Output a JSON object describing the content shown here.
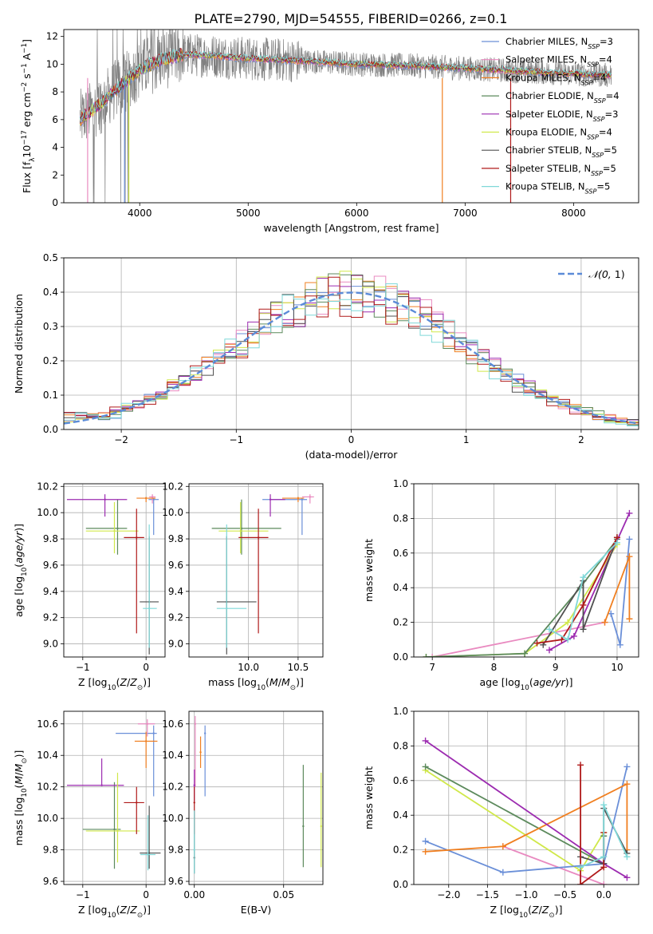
{
  "figure_title": "PLATE=2790, MJD=54555, FIBERID=0266, z=0.1",
  "colors": {
    "chabrier_miles": "#6a8fd8",
    "salpeter_miles": "#e98ac0",
    "kroupa_miles": "#f07f20",
    "chabrier_elodie": "#5c8a5c",
    "salpeter_elodie": "#9c2bb0",
    "kroupa_elodie": "#d0e84a",
    "chabrier_stelib": "#505050",
    "salpeter_stelib": "#b01a1a",
    "kroupa_stelib": "#7fd8d8",
    "normal": "#5b8bd8",
    "spectrum": "#808080"
  },
  "chart_data": [
    {
      "id": "spectrum",
      "type": "line",
      "title": "PLATE=2790, MJD=54555, FIBERID=0266, z=0.1",
      "xlabel": "wavelength [Angstrom, rest frame]",
      "ylabel": "Flux [f_λ 10^-17 erg cm^-2 s^-1 A^-1]",
      "xlim": [
        3300,
        8600
      ],
      "ylim": [
        0,
        12.5
      ],
      "xticks": [
        4000,
        5000,
        6000,
        7000,
        8000
      ],
      "yticks": [
        0,
        2,
        4,
        6,
        8,
        10,
        12
      ],
      "grid": false,
      "legend_position": "right",
      "legend": [
        "Chabrier MILES, N_SSP=3",
        "Salpeter MILES, N_SSP=4",
        "Kroupa MILES, N_SSP=4",
        "Chabrier ELODIE, N_SSP=4",
        "Salpeter ELODIE, N_SSP=3",
        "Kroupa ELODIE, N_SSP=4",
        "Chabrier STELIB, N_SSP=5",
        "Salpeter STELIB, N_SSP=5",
        "Kroupa STELIB, N_SSP=5"
      ],
      "data_range_x": [
        3450,
        8350
      ],
      "model_profile": [
        [
          3450,
          6.0
        ],
        [
          3550,
          6.6
        ],
        [
          3650,
          7.2
        ],
        [
          3750,
          8.0
        ],
        [
          3850,
          8.6
        ],
        [
          3950,
          9.3
        ],
        [
          4050,
          9.8
        ],
        [
          4200,
          10.3
        ],
        [
          4400,
          10.7
        ],
        [
          4700,
          10.6
        ],
        [
          5000,
          10.4
        ],
        [
          5300,
          10.3
        ],
        [
          5600,
          10.2
        ],
        [
          6000,
          10.0
        ],
        [
          6500,
          9.9
        ],
        [
          7000,
          9.7
        ],
        [
          7500,
          9.5
        ],
        [
          8000,
          9.3
        ],
        [
          8350,
          9.2
        ]
      ]
    },
    {
      "id": "residuals",
      "type": "histogram",
      "xlabel": "(data-model)/error",
      "ylabel": "Normed distribution",
      "xlim": [
        -2.5,
        2.5
      ],
      "ylim": [
        0,
        0.5
      ],
      "xticks": [
        -2,
        -1,
        0,
        1,
        2
      ],
      "yticks": [
        0.0,
        0.1,
        0.2,
        0.3,
        0.4,
        0.5
      ],
      "grid": true,
      "legend": [
        "𝒩(0, 1)"
      ],
      "legend_position": "top-right",
      "bin_width": 0.1
    },
    {
      "id": "age_vs_Z",
      "type": "scatter",
      "xlabel": "Z [log10(Z/Z⊙)]",
      "ylabel": "age [log10(age/yr)]",
      "xlim": [
        -1.3,
        0.3
      ],
      "ylim": [
        8.9,
        10.22
      ],
      "xticks": [
        -1,
        0
      ],
      "yticks": [
        9.0,
        9.2,
        9.4,
        9.6,
        9.8,
        10.0,
        10.2
      ],
      "grid": true,
      "points": [
        {
          "model": "chabrier_miles",
          "x": 0.12,
          "y": 10.1,
          "xerr": [
            0.08,
            0.08
          ],
          "yerr": [
            0.27,
            0.01
          ]
        },
        {
          "model": "salpeter_miles",
          "x": 0.1,
          "y": 10.12,
          "xerr": [
            0.05,
            0.05
          ],
          "yerr": [
            0.05,
            0.02
          ]
        },
        {
          "model": "kroupa_miles",
          "x": 0.0,
          "y": 10.11,
          "xerr": [
            0.15,
            0.15
          ],
          "yerr": [
            0.03,
            0.01
          ]
        },
        {
          "model": "chabrier_elodie",
          "x": -0.45,
          "y": 9.88,
          "xerr": [
            0.5,
            0.15
          ],
          "yerr": [
            0.2,
            0.22
          ]
        },
        {
          "model": "salpeter_elodie",
          "x": -0.65,
          "y": 10.1,
          "xerr": [
            0.6,
            0.35
          ],
          "yerr": [
            0.13,
            0.04
          ]
        },
        {
          "model": "kroupa_elodie",
          "x": -0.5,
          "y": 9.86,
          "xerr": [
            0.45,
            0.38
          ],
          "yerr": [
            0.17,
            0.22
          ]
        },
        {
          "model": "chabrier_stelib",
          "x": 0.05,
          "y": 9.32,
          "xerr": [
            0.15,
            0.15
          ],
          "yerr": [
            0.4,
            0.5
          ]
        },
        {
          "model": "salpeter_stelib",
          "x": -0.15,
          "y": 9.81,
          "xerr": [
            0.2,
            0.12
          ],
          "yerr": [
            0.73,
            0.22
          ]
        },
        {
          "model": "kroupa_stelib",
          "x": 0.05,
          "y": 9.27,
          "xerr": [
            0.1,
            0.12
          ],
          "yerr": [
            0.3,
            0.64
          ]
        }
      ]
    },
    {
      "id": "age_vs_mass",
      "type": "scatter",
      "xlabel": "mass [log10(M/M⊙)]",
      "ylabel": "",
      "xlim": [
        9.4,
        10.75
      ],
      "ylim": [
        8.9,
        10.22
      ],
      "xticks": [
        10.0,
        10.5
      ],
      "yticks": [
        9.0,
        9.2,
        9.4,
        9.6,
        9.8,
        10.0,
        10.2
      ],
      "grid": true,
      "points": [
        {
          "model": "chabrier_miles",
          "x": 10.54,
          "y": 10.1,
          "xerr": [
            0.4,
            0.05
          ],
          "yerr": [
            0.27,
            0.01
          ]
        },
        {
          "model": "salpeter_miles",
          "x": 10.62,
          "y": 10.12,
          "xerr": [
            0.08,
            0.04
          ],
          "yerr": [
            0.05,
            0.02
          ]
        },
        {
          "model": "kroupa_miles",
          "x": 10.5,
          "y": 10.11,
          "xerr": [
            0.16,
            0.06
          ],
          "yerr": [
            0.03,
            0.01
          ]
        },
        {
          "model": "chabrier_elodie",
          "x": 9.93,
          "y": 9.88,
          "xerr": [
            0.3,
            0.4
          ],
          "yerr": [
            0.2,
            0.22
          ]
        },
        {
          "model": "salpeter_elodie",
          "x": 10.22,
          "y": 10.1,
          "xerr": [
            0.0,
            0.15
          ],
          "yerr": [
            0.13,
            0.04
          ]
        },
        {
          "model": "kroupa_elodie",
          "x": 9.92,
          "y": 9.86,
          "xerr": [
            0.22,
            0.28
          ],
          "yerr": [
            0.17,
            0.22
          ]
        },
        {
          "model": "chabrier_stelib",
          "x": 9.78,
          "y": 9.32,
          "xerr": [
            0.1,
            0.3
          ],
          "yerr": [
            0.4,
            0.5
          ]
        },
        {
          "model": "salpeter_stelib",
          "x": 10.1,
          "y": 9.81,
          "xerr": [
            0.2,
            0.1
          ],
          "yerr": [
            0.73,
            0.22
          ]
        },
        {
          "model": "kroupa_stelib",
          "x": 9.78,
          "y": 9.27,
          "xerr": [
            0.1,
            0.2
          ],
          "yerr": [
            0.3,
            0.64
          ]
        }
      ]
    },
    {
      "id": "weight_vs_age",
      "type": "line",
      "xlabel": "age [log10(age/yr)]",
      "ylabel": "mass weight",
      "xlim": [
        6.7,
        10.35
      ],
      "ylim": [
        0,
        1.0
      ],
      "xticks": [
        7,
        8,
        9,
        10
      ],
      "yticks": [
        0.0,
        0.2,
        0.4,
        0.6,
        0.8,
        1.0
      ],
      "grid": true,
      "series": [
        {
          "model": "salpeter_miles",
          "x": [
            7.0,
            9.8
          ],
          "y": [
            0.0,
            0.2
          ]
        },
        {
          "model": "kroupa_elodie",
          "x": [
            6.9,
            8.5,
            9.2,
            10.0
          ],
          "y": [
            0.0,
            0.02,
            0.2,
            0.65
          ]
        },
        {
          "model": "chabrier_elodie",
          "x": [
            6.9,
            8.5,
            9.4,
            10.0
          ],
          "y": [
            0.0,
            0.02,
            0.4,
            0.68
          ]
        },
        {
          "model": "chabrier_miles",
          "x": [
            9.9,
            10.05,
            10.2
          ],
          "y": [
            0.25,
            0.07,
            0.68
          ]
        },
        {
          "model": "kroupa_miles",
          "x": [
            9.8,
            10.2,
            10.2
          ],
          "y": [
            0.2,
            0.58,
            0.22
          ]
        },
        {
          "model": "salpeter_elodie",
          "x": [
            8.9,
            9.3,
            10.2
          ],
          "y": [
            0.04,
            0.12,
            0.83
          ]
        },
        {
          "model": "chabrier_stelib",
          "x": [
            8.8,
            9.45,
            9.45,
            10.0
          ],
          "y": [
            0.07,
            0.44,
            0.16,
            0.69
          ]
        },
        {
          "model": "salpeter_stelib",
          "x": [
            8.7,
            9.1,
            9.45,
            10.0
          ],
          "y": [
            0.08,
            0.1,
            0.3,
            0.69
          ]
        },
        {
          "model": "kroupa_stelib",
          "x": [
            8.9,
            9.2,
            9.45,
            10.0
          ],
          "y": [
            0.16,
            0.1,
            0.46,
            0.66
          ]
        }
      ]
    },
    {
      "id": "mass_vs_Z",
      "type": "scatter",
      "xlabel": "Z [log10(Z/Z⊙)]",
      "ylabel": "mass [log10(M/M⊙)]",
      "xlim": [
        -1.3,
        0.3
      ],
      "ylim": [
        9.58,
        10.68
      ],
      "xticks": [
        -1,
        0
      ],
      "yticks": [
        9.6,
        9.8,
        10.0,
        10.2,
        10.4,
        10.6
      ],
      "grid": true,
      "points": [
        {
          "model": "chabrier_miles",
          "x": 0.12,
          "y": 10.54,
          "xerr": [
            0.6,
            0.05
          ],
          "yerr": [
            0.4,
            0.05
          ]
        },
        {
          "model": "salpeter_miles",
          "x": 0.02,
          "y": 10.6,
          "xerr": [
            0.15,
            0.12
          ],
          "yerr": [
            0.08,
            0.03
          ]
        },
        {
          "model": "kroupa_miles",
          "x": 0.0,
          "y": 10.49,
          "xerr": [
            0.18,
            0.18
          ],
          "yerr": [
            0.17,
            0.06
          ]
        },
        {
          "model": "chabrier_elodie",
          "x": -0.5,
          "y": 9.93,
          "xerr": [
            0.5,
            0.1
          ],
          "yerr": [
            0.25,
            0.3
          ]
        },
        {
          "model": "salpeter_elodie",
          "x": -0.7,
          "y": 10.21,
          "xerr": [
            0.55,
            0.35
          ],
          "yerr": [
            0.0,
            0.17
          ]
        },
        {
          "model": "kroupa_elodie",
          "x": -0.45,
          "y": 9.92,
          "xerr": [
            0.5,
            0.35
          ],
          "yerr": [
            0.2,
            0.37
          ]
        },
        {
          "model": "chabrier_stelib",
          "x": 0.05,
          "y": 9.78,
          "xerr": [
            0.15,
            0.18
          ],
          "yerr": [
            0.1,
            0.3
          ]
        },
        {
          "model": "salpeter_stelib",
          "x": -0.15,
          "y": 10.1,
          "xerr": [
            0.2,
            0.12
          ],
          "yerr": [
            0.2,
            0.1
          ]
        },
        {
          "model": "kroupa_stelib",
          "x": 0.03,
          "y": 9.77,
          "xerr": [
            0.12,
            0.12
          ],
          "yerr": [
            0.1,
            0.25
          ]
        }
      ]
    },
    {
      "id": "mass_vs_ebv",
      "type": "scatter",
      "xlabel": "E(B-V)",
      "ylabel": "",
      "xlim": [
        -0.003,
        0.072
      ],
      "ylim": [
        9.58,
        10.68
      ],
      "xticks": [
        0.0,
        0.05
      ],
      "yticks": [
        9.6,
        9.8,
        10.0,
        10.2,
        10.4,
        10.6
      ],
      "grid": true,
      "points": [
        {
          "model": "chabrier_miles",
          "x": 0.006,
          "y": 10.54,
          "yerr": [
            0.4,
            0.05
          ]
        },
        {
          "model": "salpeter_miles",
          "x": 0.0005,
          "y": 10.6,
          "yerr": [
            0.4,
            0.05
          ]
        },
        {
          "model": "kroupa_miles",
          "x": 0.0035,
          "y": 10.42,
          "yerr": [
            0.1,
            0.1
          ]
        },
        {
          "model": "chabrier_elodie",
          "x": 0.061,
          "y": 9.95,
          "yerr": [
            0.26,
            0.39
          ]
        },
        {
          "model": "salpeter_elodie",
          "x": 0.0,
          "y": 10.21,
          "yerr": [
            0.1,
            0.1
          ]
        },
        {
          "model": "kroupa_elodie",
          "x": 0.071,
          "y": 9.95,
          "yerr": [
            0.26,
            0.34
          ]
        },
        {
          "model": "chabrier_stelib",
          "x": 0.0,
          "y": 9.75,
          "yerr": [
            0.1,
            0.3
          ]
        },
        {
          "model": "salpeter_stelib",
          "x": 0.0,
          "y": 10.1,
          "yerr": [
            0.2,
            0.1
          ]
        },
        {
          "model": "kroupa_stelib",
          "x": 0.0,
          "y": 9.8,
          "yerr": [
            0.15,
            0.25
          ]
        }
      ]
    },
    {
      "id": "weight_vs_Z",
      "type": "line",
      "xlabel": "Z [log10(Z/Z⊙)]",
      "ylabel": "mass weight",
      "xlim": [
        -2.45,
        0.45
      ],
      "ylim": [
        0,
        1.0
      ],
      "xticks": [
        -2.0,
        -1.5,
        -1.0,
        -0.5,
        0.0
      ],
      "yticks": [
        0.0,
        0.2,
        0.4,
        0.6,
        0.8,
        1.0
      ],
      "grid": true,
      "series": [
        {
          "model": "salpeter_miles",
          "x": [
            -1.3,
            0.0
          ],
          "y": [
            0.22,
            0.0
          ]
        },
        {
          "model": "kroupa_elodie",
          "x": [
            -2.3,
            -0.3,
            0.0
          ],
          "y": [
            0.66,
            0.08,
            0.3
          ]
        },
        {
          "model": "chabrier_elodie",
          "x": [
            -2.3,
            0.0,
            0.0
          ],
          "y": [
            0.68,
            0.12,
            0.28
          ]
        },
        {
          "model": "chabrier_miles",
          "x": [
            -2.3,
            -1.3,
            0.0,
            0.3
          ],
          "y": [
            0.25,
            0.07,
            0.12,
            0.68
          ]
        },
        {
          "model": "kroupa_miles",
          "x": [
            -2.3,
            -1.3,
            0.3,
            0.3
          ],
          "y": [
            0.19,
            0.22,
            0.58,
            0.2
          ]
        },
        {
          "model": "salpeter_elodie",
          "x": [
            -2.3,
            0.0,
            0.3
          ],
          "y": [
            0.83,
            0.12,
            0.04
          ]
        },
        {
          "model": "chabrier_stelib",
          "x": [
            -0.3,
            0.0,
            0.0,
            0.3
          ],
          "y": [
            0.16,
            0.12,
            0.44,
            0.18
          ]
        },
        {
          "model": "salpeter_stelib",
          "x": [
            -0.3,
            -0.3,
            0.0,
            0.0
          ],
          "y": [
            0.69,
            0.0,
            0.1,
            0.3
          ]
        },
        {
          "model": "kroupa_stelib",
          "x": [
            -0.3,
            0.0,
            0.0,
            0.3
          ],
          "y": [
            0.1,
            0.16,
            0.46,
            0.16
          ]
        }
      ]
    }
  ]
}
